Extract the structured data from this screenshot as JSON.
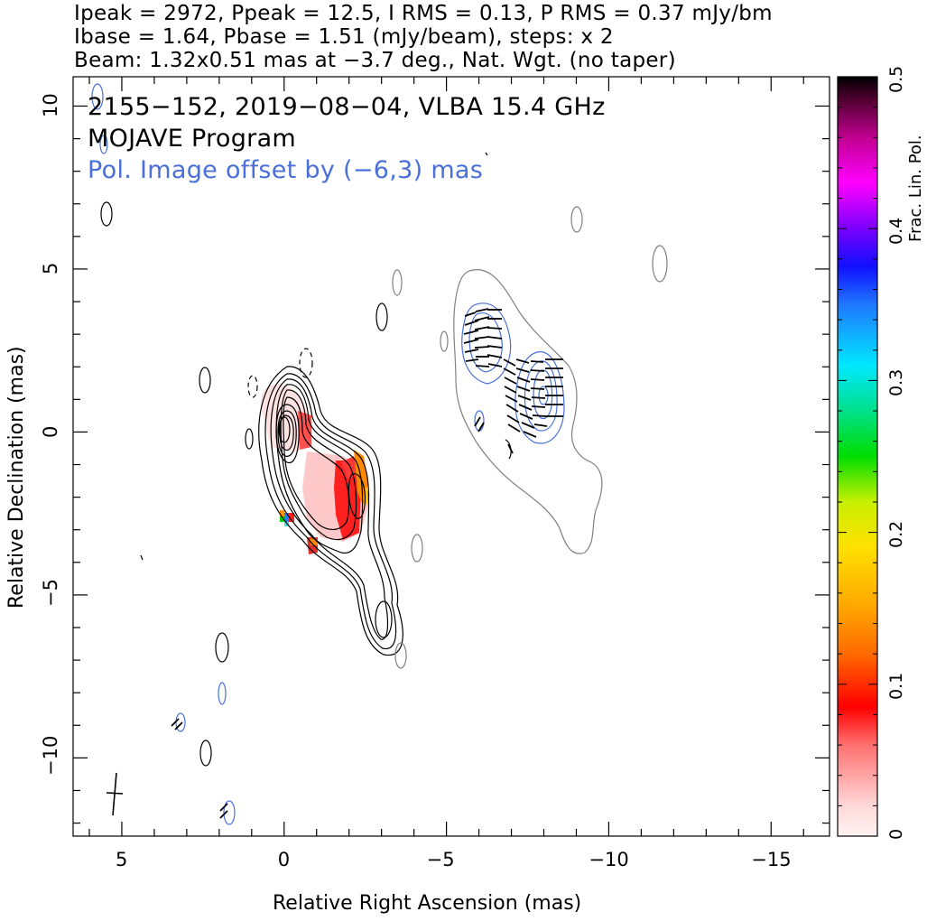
{
  "header": {
    "line1": "Ipeak = 2972, Ppeak = 12.5, I RMS = 0.13, P RMS = 0.37 mJy/bm",
    "line2": "Ibase = 1.64, Pbase = 1.51 (mJy/beam), steps: x 2",
    "line3": "Beam: 1.32x0.51 mas at −3.7 deg., Nat. Wgt. (no taper)"
  },
  "annotations": {
    "source": "2155−152, 2019−08−04, VLBA 15.4 GHz",
    "program": "MOJAVE Program",
    "offset": "Pol. Image offset by (−6,3) mas",
    "offset_color": "#4a6fd8"
  },
  "chart_data": {
    "type": "contour",
    "xlabel": "Relative Right Ascension (mas)",
    "ylabel": "Relative Declination (mas)",
    "xlim": [
      6.5,
      -16.8
    ],
    "ylim": [
      -12.4,
      10.9
    ],
    "x_ticks": [
      5,
      0,
      -5,
      -10,
      -15
    ],
    "x_tick_labels": [
      "5",
      "0",
      "−5",
      "−10",
      "−15"
    ],
    "y_ticks": [
      10,
      5,
      0,
      -5,
      -10
    ],
    "y_tick_labels": [
      "10",
      "5",
      "0",
      "−5",
      "−10"
    ],
    "colorbar": {
      "label": "Frac. Lin. Pol.",
      "range": [
        0,
        0.5
      ],
      "ticks": [
        0,
        0.1,
        0.2,
        0.3,
        0.4,
        0.5
      ],
      "tick_labels": [
        "0",
        "0.1",
        "0.2",
        "0.3",
        "0.4",
        "0.5"
      ]
    },
    "beam": {
      "major_mas": 1.32,
      "minor_mas": 0.51,
      "pa_deg": -3.7
    },
    "peak_total_intensity_mJy_per_beam": 2972,
    "peak_polarized_intensity_mJy_per_beam": 12.5,
    "contour_steps": "x 2",
    "colors": {
      "i_contours": "#000000",
      "neg_contours": "#000000",
      "pol_contours": "#4a6fd8",
      "pol_offset_outline": "#808080",
      "evpa_ticks": "#000000"
    }
  }
}
